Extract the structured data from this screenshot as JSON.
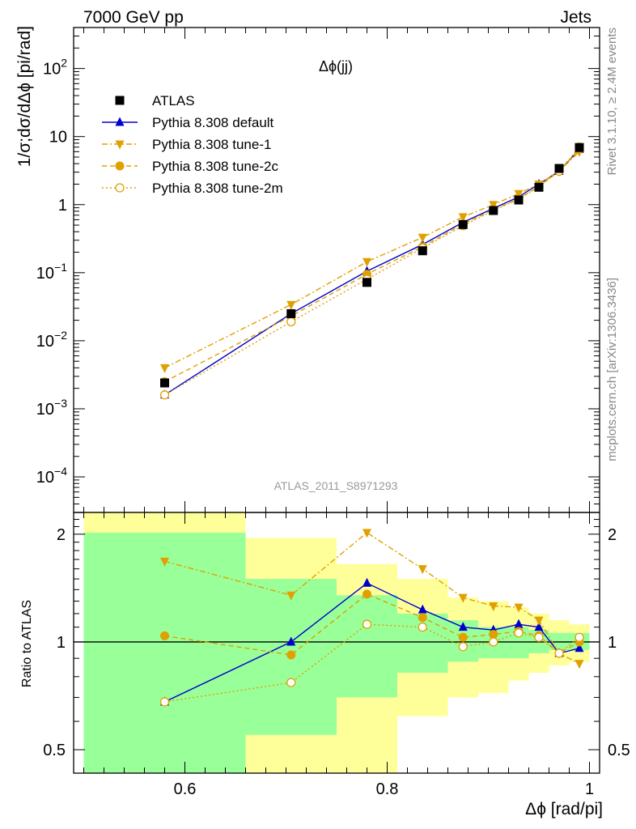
{
  "header": {
    "left": "7000 GeV pp",
    "right": "Jets"
  },
  "side_labels": {
    "rivet": "Rivet 3.1.10, ≥ 2.4M events",
    "mcplots": "mcplots.cern.ch [arXiv:1306.3436]"
  },
  "analysis_label": "ATLAS_2011_S8971293",
  "colors": {
    "atlas": "#000000",
    "default": "#0000cc",
    "tune": "#e0a000",
    "band_green": "#99ff99",
    "band_yellow": "#ffff99"
  },
  "chart_data": [
    {
      "type": "line",
      "title": "Δϕ(jj)",
      "ylabel": "1/σ;dσ/dΔϕ [pi/rad]",
      "yscale": "log",
      "ylim": [
        3e-05,
        400
      ],
      "xlim": [
        0.49,
        1.01
      ],
      "y_ticks": [
        {
          "v": 0.0001,
          "base": "10",
          "exp": "−4"
        },
        {
          "v": 0.001,
          "base": "10",
          "exp": "−3"
        },
        {
          "v": 0.01,
          "base": "10",
          "exp": "−2"
        },
        {
          "v": 0.1,
          "base": "10",
          "exp": "−1"
        },
        {
          "v": 1,
          "base": "1",
          "exp": ""
        },
        {
          "v": 10,
          "base": "10",
          "exp": ""
        },
        {
          "v": 100,
          "base": "10",
          "exp": "2"
        }
      ],
      "x": [
        0.58,
        0.705,
        0.78,
        0.835,
        0.875,
        0.905,
        0.93,
        0.95,
        0.97,
        0.99
      ],
      "series": [
        {
          "name": "ATLAS",
          "key": "atlas",
          "marker": "square",
          "dash": "",
          "values": [
            0.0024,
            0.025,
            0.072,
            0.21,
            0.51,
            0.82,
            1.17,
            1.8,
            3.4,
            6.9
          ]
        },
        {
          "name": "Pythia 8.308 default",
          "key": "default",
          "marker": "triangle-up",
          "dash": "",
          "values": [
            0.0016,
            0.025,
            0.105,
            0.26,
            0.55,
            0.88,
            1.3,
            2.0,
            3.1,
            6.5
          ]
        },
        {
          "name": "Pythia 8.308 tune-1",
          "key": "tune1",
          "marker": "triangle-down",
          "dash": "7,3,2,3",
          "values": [
            0.004,
            0.034,
            0.145,
            0.33,
            0.66,
            1.0,
            1.45,
            2.0,
            3.1,
            6.0
          ]
        },
        {
          "name": "Pythia 8.308 tune-2c",
          "key": "tune2c",
          "marker": "circle",
          "dash": "6,4",
          "values": [
            0.0025,
            0.023,
            0.095,
            0.24,
            0.52,
            0.84,
            1.22,
            1.85,
            3.1,
            6.5
          ]
        },
        {
          "name": "Pythia 8.308 tune-2m",
          "key": "tune2m",
          "marker": "circle-open",
          "dash": "2,3",
          "values": [
            0.0016,
            0.019,
            0.08,
            0.23,
            0.49,
            0.82,
            1.2,
            1.84,
            3.1,
            7.0
          ]
        }
      ]
    },
    {
      "type": "line",
      "ylabel": "Ratio to ATLAS",
      "xlabel": "Δϕ [rad/pi]",
      "yscale": "log",
      "ylim": [
        0.43,
        2.3
      ],
      "xlim": [
        0.49,
        1.01
      ],
      "x_ticks": [
        0.6,
        0.8,
        1
      ],
      "x_tick_labels": [
        "0.6",
        "0.8",
        "1"
      ],
      "y_ticks": [
        0.5,
        1,
        2
      ],
      "y_tick_labels": [
        "0.5",
        "1",
        "2"
      ],
      "x": [
        0.58,
        0.705,
        0.78,
        0.835,
        0.875,
        0.905,
        0.93,
        0.95,
        0.97,
        0.99
      ],
      "bins": [
        {
          "lo": 0.5,
          "hi": 0.66,
          "g_lo": 0.43,
          "g_hi": 2.02,
          "y_lo": 0.43,
          "y_hi": 2.3
        },
        {
          "lo": 0.66,
          "hi": 0.75,
          "g_lo": 0.55,
          "g_hi": 1.5,
          "y_lo": 0.43,
          "y_hi": 1.95
        },
        {
          "lo": 0.75,
          "hi": 0.81,
          "g_lo": 0.7,
          "g_hi": 1.35,
          "y_lo": 0.43,
          "y_hi": 1.65
        },
        {
          "lo": 0.81,
          "hi": 0.86,
          "g_lo": 0.82,
          "g_hi": 1.2,
          "y_lo": 0.62,
          "y_hi": 1.5
        },
        {
          "lo": 0.86,
          "hi": 0.89,
          "g_lo": 0.88,
          "g_hi": 1.15,
          "y_lo": 0.7,
          "y_hi": 1.33
        },
        {
          "lo": 0.89,
          "hi": 0.92,
          "g_lo": 0.9,
          "g_hi": 1.1,
          "y_lo": 0.72,
          "y_hi": 1.3
        },
        {
          "lo": 0.92,
          "hi": 0.94,
          "g_lo": 0.9,
          "g_hi": 1.1,
          "y_lo": 0.78,
          "y_hi": 1.25
        },
        {
          "lo": 0.94,
          "hi": 0.96,
          "g_lo": 0.93,
          "g_hi": 1.08,
          "y_lo": 0.82,
          "y_hi": 1.2
        },
        {
          "lo": 0.96,
          "hi": 0.98,
          "g_lo": 0.95,
          "g_hi": 1.06,
          "y_lo": 0.86,
          "y_hi": 1.15
        },
        {
          "lo": 0.98,
          "hi": 1.0,
          "g_lo": 0.95,
          "g_hi": 1.06,
          "y_lo": 0.88,
          "y_hi": 1.12
        }
      ],
      "series": [
        {
          "name": "Pythia 8.308 default",
          "key": "default",
          "marker": "triangle-up",
          "dash": "",
          "values": [
            0.68,
            1.0,
            1.46,
            1.23,
            1.1,
            1.08,
            1.12,
            1.1,
            0.93,
            0.96
          ]
        },
        {
          "name": "Pythia 8.308 tune-1",
          "key": "tune1",
          "marker": "triangle-down",
          "dash": "7,3,2,3",
          "values": [
            1.68,
            1.35,
            2.02,
            1.6,
            1.33,
            1.26,
            1.25,
            1.15,
            0.93,
            0.87
          ]
        },
        {
          "name": "Pythia 8.308 tune-2c",
          "key": "tune2c",
          "marker": "circle",
          "dash": "6,4",
          "values": [
            1.04,
            0.92,
            1.36,
            1.17,
            1.03,
            1.05,
            1.07,
            1.04,
            0.93,
            1.0
          ]
        },
        {
          "name": "Pythia 8.308 tune-2m",
          "key": "tune2m",
          "marker": "circle-open",
          "dash": "2,3",
          "values": [
            0.68,
            0.77,
            1.12,
            1.1,
            0.97,
            1.0,
            1.06,
            1.03,
            0.93,
            1.03
          ]
        }
      ]
    }
  ]
}
